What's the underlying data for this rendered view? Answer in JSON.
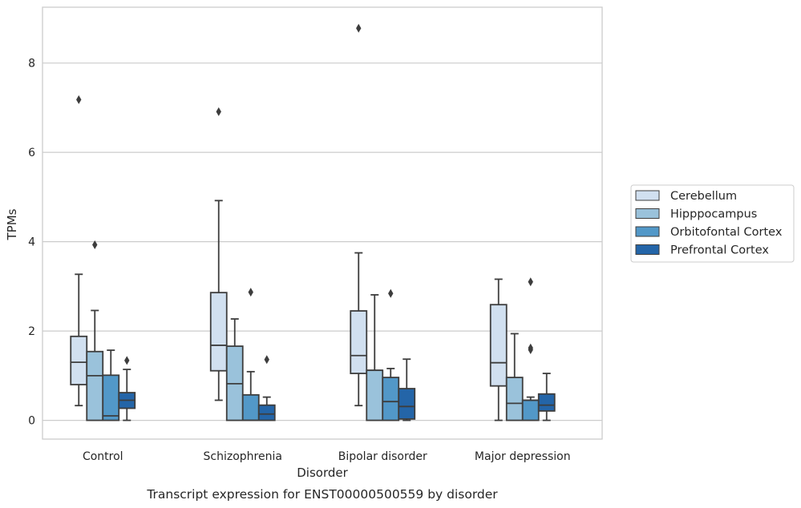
{
  "chart_data": {
    "type": "box",
    "xlabel": "Disorder",
    "ylabel": "TPMs",
    "caption": "Transcript expression for ENST00000500559 by disorder",
    "ylim": [
      -0.42,
      9.25
    ],
    "yticks": [
      0,
      2,
      4,
      6,
      8
    ],
    "grid": "horizontal",
    "legend_position": "right",
    "categories": [
      "Control",
      "Schizophrenia",
      "Bipolar disorder",
      "Major depression"
    ],
    "series": [
      {
        "name": "Cerebellum",
        "color": "#d1e0f0",
        "boxes": [
          {
            "whisker_low": 0.33,
            "q1": 0.8,
            "median": 1.3,
            "q3": 1.88,
            "whisker_high": 3.27,
            "outliers": [
              7.18
            ]
          },
          {
            "whisker_low": 0.45,
            "q1": 1.11,
            "median": 1.68,
            "q3": 2.86,
            "whisker_high": 4.92,
            "outliers": [
              6.91
            ]
          },
          {
            "whisker_low": 0.33,
            "q1": 1.05,
            "median": 1.45,
            "q3": 2.45,
            "whisker_high": 3.75,
            "outliers": [
              8.78
            ]
          },
          {
            "whisker_low": 0.0,
            "q1": 0.77,
            "median": 1.29,
            "q3": 2.59,
            "whisker_high": 3.16,
            "outliers": []
          }
        ]
      },
      {
        "name": "Hipppocampus",
        "color": "#9ac2db",
        "boxes": [
          {
            "whisker_low": 0.0,
            "q1": 0.0,
            "median": 1.0,
            "q3": 1.54,
            "whisker_high": 2.46,
            "outliers": [
              3.93
            ]
          },
          {
            "whisker_low": 0.0,
            "q1": 0.0,
            "median": 0.82,
            "q3": 1.66,
            "whisker_high": 2.27,
            "outliers": []
          },
          {
            "whisker_low": 0.0,
            "q1": 0.0,
            "median": 1.12,
            "q3": 1.12,
            "whisker_high": 2.81,
            "outliers": []
          },
          {
            "whisker_low": 0.0,
            "q1": 0.0,
            "median": 0.38,
            "q3": 0.96,
            "whisker_high": 1.94,
            "outliers": []
          }
        ]
      },
      {
        "name": "Orbitofontal Cortex",
        "color": "#5298c8",
        "boxes": [
          {
            "whisker_low": 0.0,
            "q1": 0.0,
            "median": 0.1,
            "q3": 1.01,
            "whisker_high": 1.57,
            "outliers": []
          },
          {
            "whisker_low": 0.0,
            "q1": 0.0,
            "median": 0.0,
            "q3": 0.57,
            "whisker_high": 1.09,
            "outliers": [
              2.87
            ]
          },
          {
            "whisker_low": 0.0,
            "q1": 0.0,
            "median": 0.42,
            "q3": 0.96,
            "whisker_high": 1.16,
            "outliers": [
              2.84
            ]
          },
          {
            "whisker_low": 0.0,
            "q1": 0.0,
            "median": 0.45,
            "q3": 0.45,
            "whisker_high": 0.52,
            "outliers": [
              3.1,
              1.62,
              1.58
            ]
          }
        ]
      },
      {
        "name": "Prefrontal Cortex",
        "color": "#2465a8",
        "boxes": [
          {
            "whisker_low": 0.0,
            "q1": 0.27,
            "median": 0.45,
            "q3": 0.62,
            "whisker_high": 1.14,
            "outliers": [
              1.34
            ]
          },
          {
            "whisker_low": 0.0,
            "q1": 0.0,
            "median": 0.14,
            "q3": 0.34,
            "whisker_high": 0.52,
            "outliers": [
              1.36
            ]
          },
          {
            "whisker_low": 0.0,
            "q1": 0.03,
            "median": 0.31,
            "q3": 0.71,
            "whisker_high": 1.37,
            "outliers": []
          },
          {
            "whisker_low": 0.0,
            "q1": 0.21,
            "median": 0.34,
            "q3": 0.59,
            "whisker_high": 1.05,
            "outliers": []
          }
        ]
      }
    ]
  }
}
